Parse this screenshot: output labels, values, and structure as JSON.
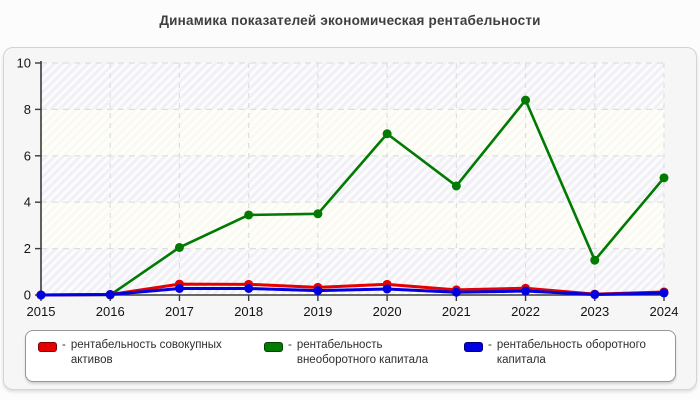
{
  "title": "Динамика показателей экономическая рентабельности",
  "chart_data": {
    "type": "line",
    "title": "Динамика показателей экономическая рентабельности",
    "categories": [
      "2015",
      "2016",
      "2017",
      "2018",
      "2019",
      "2020",
      "2021",
      "2022",
      "2023",
      "2024"
    ],
    "series": [
      {
        "name": "рентабельность совокупных активов",
        "color": "#e60000",
        "values": [
          0,
          0.02,
          0.47,
          0.46,
          0.33,
          0.46,
          0.22,
          0.29,
          0.04,
          0.13
        ]
      },
      {
        "name": "рентабельность внеоборотного капитала",
        "color": "#007a00",
        "values": [
          0,
          0,
          2.05,
          3.45,
          3.5,
          6.95,
          4.7,
          8.4,
          1.5,
          5.05
        ]
      },
      {
        "name": "рентабельность оборотного капитала",
        "color": "#0000e0",
        "values": [
          0,
          0.02,
          0.28,
          0.28,
          0.19,
          0.26,
          0.12,
          0.17,
          0.02,
          0.09
        ]
      }
    ],
    "xlabel": "",
    "ylabel": "",
    "ylim": [
      0,
      10
    ],
    "yticks": [
      0,
      2,
      4,
      6,
      8,
      10
    ],
    "grid": "dashed horizontal and vertical",
    "legend_position": "bottom"
  },
  "legend": {
    "items": [
      {
        "color": "#e60000",
        "dash": "-",
        "line1": "рентабельность совокупных",
        "line2": "активов"
      },
      {
        "color": "#007a00",
        "dash": "-",
        "line1": "рентабельность",
        "line2": "внеоборотного капитала"
      },
      {
        "color": "#0000e0",
        "dash": "-",
        "line1": "рентабельность оборотного",
        "line2": "капитала"
      }
    ]
  },
  "colors": {
    "axis": "#3a3a3a",
    "grid": "#dedede",
    "tick_label": "#141414",
    "band_gray": "#f0f0f6",
    "band_ivory": "#fafaf0",
    "hatch": "#ffffff",
    "panel_bg": "#f6f6f6"
  }
}
